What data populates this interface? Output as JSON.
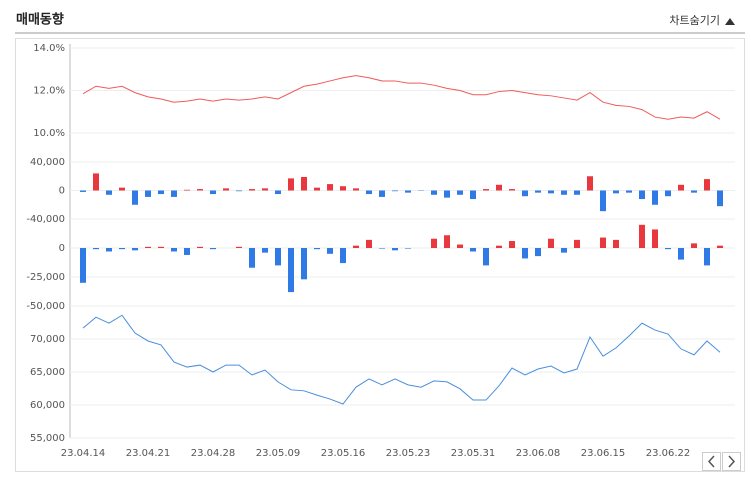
{
  "title": "매매동향",
  "toggle": "차트숨기기",
  "chart_data": [
    {
      "type": "line",
      "color": "#f05a5a",
      "ylim": [
        10,
        14
      ],
      "yticks": [
        {
          "value": 10,
          "label": "10.0%"
        },
        {
          "value": 12,
          "label": "12.0%"
        },
        {
          "value": 14,
          "label": "14.0%"
        }
      ],
      "grid": true,
      "series": [
        {
          "color": "#f05a5a",
          "values": [
            11.85,
            12.2,
            12.1,
            12.2,
            11.9,
            11.7,
            11.6,
            11.45,
            11.5,
            11.6,
            11.5,
            11.6,
            11.55,
            11.6,
            11.7,
            11.6,
            11.9,
            12.2,
            12.3,
            12.45,
            12.6,
            12.7,
            12.6,
            12.45,
            12.45,
            12.35,
            12.35,
            12.25,
            12.1,
            12.0,
            11.8,
            11.8,
            11.95,
            12.0,
            11.9,
            11.8,
            11.75,
            11.65,
            11.55,
            11.9,
            11.45,
            11.3,
            11.25,
            11.1,
            10.75,
            10.65,
            10.75,
            10.7,
            11.0,
            10.65
          ]
        }
      ]
    },
    {
      "type": "bar",
      "ylim": [
        -40000,
        40000
      ],
      "yticks": [
        {
          "value": -40000,
          "label": "-40,000"
        },
        0,
        {
          "value": 40000,
          "label": "40,000"
        }
      ],
      "grid": true,
      "colors": {
        "positive": "#e8383d",
        "negative": "#2f7ae5"
      },
      "values": [
        -2000,
        24000,
        -6000,
        4000,
        -20000,
        -9000,
        -5000,
        -9000,
        1000,
        2000,
        -5000,
        3000,
        -1000,
        2000,
        3000,
        -5000,
        17000,
        19000,
        4000,
        9000,
        6000,
        3000,
        -5000,
        -9000,
        -1000,
        -3000,
        -500,
        -6000,
        -10000,
        -6000,
        -12000,
        2000,
        8000,
        2000,
        -8000,
        -3000,
        -4000,
        -6000,
        -6000,
        20000,
        -29000,
        -4000,
        -3000,
        -12000,
        -20000,
        -8000,
        8000,
        -3000,
        16000,
        -22000
      ]
    },
    {
      "type": "bar",
      "ylim": [
        -50000,
        25000
      ],
      "yticks": [
        {
          "value": -50000,
          "label": "-50,000"
        },
        {
          "value": -25000,
          "label": "-25,000"
        },
        0
      ],
      "grid": true,
      "colors": {
        "positive": "#e8383d",
        "negative": "#2f7ae5"
      },
      "values": [
        -30000,
        -1000,
        -3000,
        -1000,
        -2000,
        1000,
        1000,
        -3000,
        -6000,
        1000,
        -1000,
        0,
        1000,
        -17000,
        -4000,
        -15000,
        -38000,
        -27000,
        -1000,
        -5000,
        -13000,
        2000,
        7000,
        -500,
        -2000,
        -500,
        0,
        8000,
        11000,
        3000,
        -3000,
        -15000,
        2000,
        6000,
        -9000,
        -7000,
        8000,
        -4000,
        7000,
        0,
        9000,
        7000,
        0,
        20000,
        16000,
        -1000,
        -10000,
        4000,
        -15000,
        2000
      ]
    },
    {
      "type": "line",
      "ylim": [
        55000,
        75000
      ],
      "yticks": [
        {
          "value": 55000,
          "label": "55,000"
        },
        {
          "value": 60000,
          "label": "60,000"
        },
        {
          "value": 65000,
          "label": "65,000"
        },
        {
          "value": 70000,
          "label": "70,000"
        }
      ],
      "grid": true,
      "categories": [
        "23.04.14",
        null,
        null,
        null,
        null,
        "23.04.21",
        null,
        null,
        null,
        null,
        "23.04.28",
        null,
        null,
        null,
        null,
        "23.05.09",
        null,
        null,
        null,
        null,
        "23.05.16",
        null,
        null,
        null,
        null,
        "23.05.23",
        null,
        null,
        null,
        null,
        "23.05.31",
        null,
        null,
        null,
        null,
        "23.06.08",
        null,
        null,
        null,
        null,
        "23.06.15",
        null,
        null,
        null,
        null,
        "23.06.22",
        null,
        null,
        null,
        null
      ],
      "series": [
        {
          "color": "#4a8fdb",
          "values": [
            71650,
            73300,
            72400,
            73600,
            70900,
            69700,
            69100,
            66500,
            65750,
            66050,
            65000,
            66050,
            66050,
            64550,
            65300,
            63500,
            62300,
            62150,
            61500,
            60900,
            60150,
            62700,
            63950,
            63050,
            63950,
            63050,
            62700,
            63650,
            63500,
            62450,
            60750,
            60750,
            62900,
            65600,
            64550,
            65450,
            65900,
            64850,
            65450,
            70300,
            67400,
            68650,
            70450,
            72400,
            71350,
            70750,
            68500,
            67600,
            69700,
            68000
          ]
        }
      ]
    }
  ]
}
